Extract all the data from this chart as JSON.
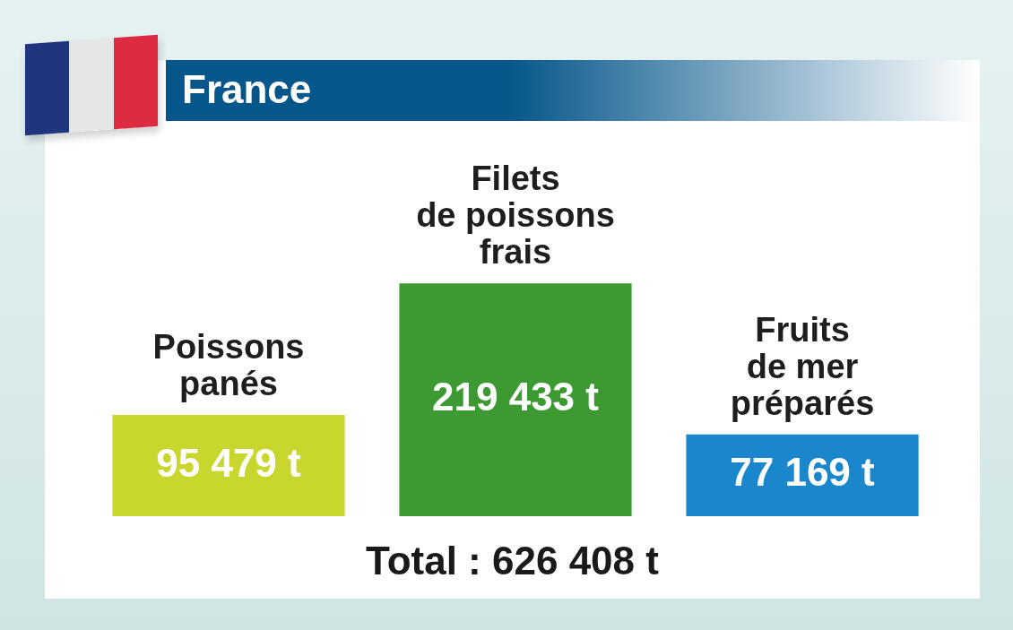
{
  "chart_data": {
    "type": "bar",
    "title": "France",
    "categories": [
      "Poissons panés",
      "Filets de poissons frais",
      "Fruits de mer préparés"
    ],
    "values": [
      95479,
      219433,
      77169
    ],
    "colors": [
      "#c9d62e",
      "#3d9a32",
      "#1a86cc"
    ],
    "value_labels": [
      "95 479 t",
      "219 433 t",
      "77 169 t"
    ],
    "annotations": [
      "Total : 626 408 t"
    ]
  }
}
